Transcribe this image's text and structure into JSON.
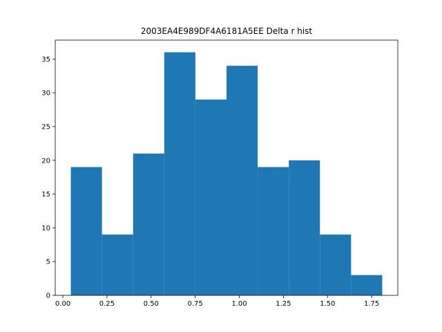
{
  "chart_data": {
    "type": "bar",
    "title": "2003EA4E989DF4A6181A5EE Delta r hist",
    "xlabel": "",
    "ylabel": "",
    "bin_edges": [
      0.045,
      0.2215,
      0.398,
      0.5745,
      0.751,
      0.9275,
      1.104,
      1.2805,
      1.457,
      1.6335,
      1.81
    ],
    "values": [
      19,
      9,
      21,
      36,
      29,
      34,
      19,
      20,
      9,
      3
    ],
    "xlim": [
      -0.0433,
      1.8983
    ],
    "ylim": [
      0,
      37.8
    ],
    "xticks": [
      0.0,
      0.25,
      0.5,
      0.75,
      1.0,
      1.25,
      1.5,
      1.75
    ],
    "xtick_labels": [
      "0.00",
      "0.25",
      "0.50",
      "0.75",
      "1.00",
      "1.25",
      "1.50",
      "1.75"
    ],
    "yticks": [
      0,
      5,
      10,
      15,
      20,
      25,
      30,
      35
    ],
    "ytick_labels": [
      "0",
      "5",
      "10",
      "15",
      "20",
      "25",
      "30",
      "35"
    ],
    "bar_color": "#1f77b4",
    "grid": false,
    "legend": "none"
  }
}
